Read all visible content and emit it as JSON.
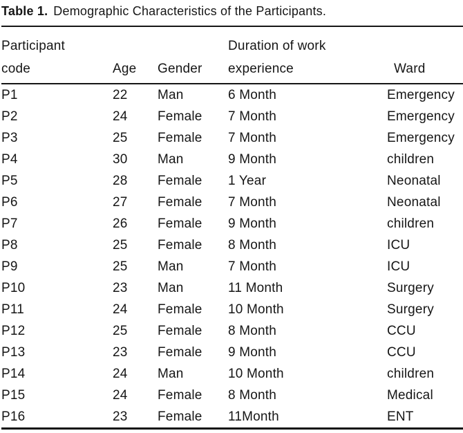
{
  "caption": {
    "label": "Table 1.",
    "title": "Demographic Characteristics of the Participants."
  },
  "table": {
    "header": {
      "participant_line1": "Participant",
      "participant_line2": "code",
      "age": "Age",
      "gender": "Gender",
      "duration_line1": "Duration of work",
      "duration_line2": "experience",
      "ward": "Ward"
    },
    "columns": [
      "Participant code",
      "Age",
      "Gender",
      "Duration of work experience",
      "Ward"
    ],
    "rows": [
      {
        "code": "P1",
        "age": "22",
        "gender": "Man",
        "duration": "6 Month",
        "ward": "Emergency"
      },
      {
        "code": "P2",
        "age": "24",
        "gender": "Female",
        "duration": "7 Month",
        "ward": "Emergency"
      },
      {
        "code": "P3",
        "age": "25",
        "gender": "Female",
        "duration": "7 Month",
        "ward": "Emergency"
      },
      {
        "code": "P4",
        "age": "30",
        "gender": "Man",
        "duration": "9 Month",
        "ward": "children"
      },
      {
        "code": "P5",
        "age": "28",
        "gender": "Female",
        "duration": "1 Year",
        "ward": "Neonatal"
      },
      {
        "code": "P6",
        "age": "27",
        "gender": "Female",
        "duration": "7 Month",
        "ward": "Neonatal"
      },
      {
        "code": "P7",
        "age": "26",
        "gender": "Female",
        "duration": "9 Month",
        "ward": "children"
      },
      {
        "code": "P8",
        "age": "25",
        "gender": "Female",
        "duration": "8 Month",
        "ward": "ICU"
      },
      {
        "code": "P9",
        "age": "25",
        "gender": "Man",
        "duration": "7 Month",
        "ward": "ICU"
      },
      {
        "code": "P10",
        "age": "23",
        "gender": "Man",
        "duration": "11 Month",
        "ward": "Surgery"
      },
      {
        "code": "P11",
        "age": "24",
        "gender": "Female",
        "duration": "10 Month",
        "ward": "Surgery"
      },
      {
        "code": "P12",
        "age": "25",
        "gender": "Female",
        "duration": "8 Month",
        "ward": "CCU"
      },
      {
        "code": "P13",
        "age": "23",
        "gender": "Female",
        "duration": "9 Month",
        "ward": "CCU"
      },
      {
        "code": "P14",
        "age": "24",
        "gender": "Man",
        "duration": "10 Month",
        "ward": "children"
      },
      {
        "code": "P15",
        "age": "24",
        "gender": "Female",
        "duration": "8 Month",
        "ward": "Medical"
      },
      {
        "code": "P16",
        "age": "23",
        "gender": "Female",
        "duration": "11Month",
        "ward": "ENT"
      }
    ]
  }
}
